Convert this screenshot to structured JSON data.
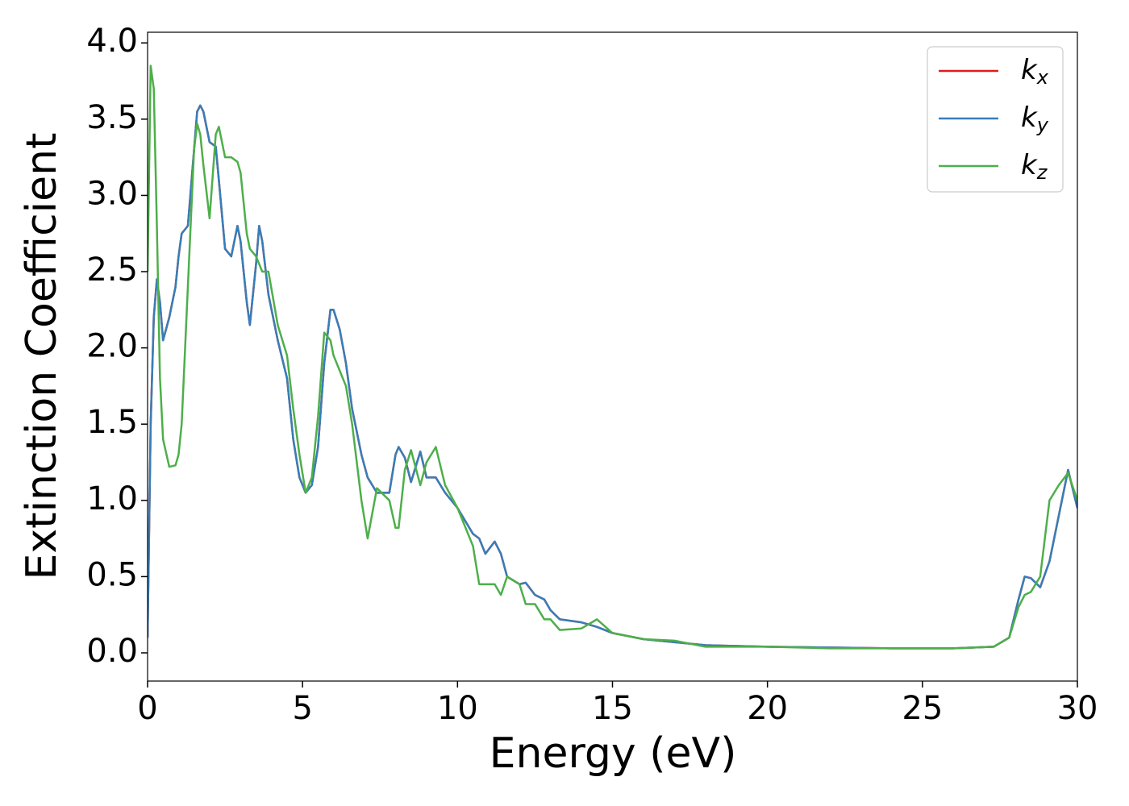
{
  "chart_data": {
    "type": "line",
    "x_label": "Energy (eV)",
    "y_label": "Extinction Coefficient",
    "xlim": [
      0,
      30
    ],
    "ylim": [
      -0.185,
      4.07
    ],
    "xticks": [
      0,
      5,
      10,
      15,
      20,
      25,
      30
    ],
    "yticks": [
      {
        "value": 0,
        "label": "0.0"
      },
      {
        "value": 0.5,
        "label": "0.5"
      },
      {
        "value": 1,
        "label": "1.0"
      },
      {
        "value": 1.5,
        "label": "1.5"
      },
      {
        "value": 2,
        "label": "2.0"
      },
      {
        "value": 2.5,
        "label": "2.5"
      },
      {
        "value": 3,
        "label": "3.0"
      },
      {
        "value": 3.5,
        "label": "3.5"
      },
      {
        "value": 4,
        "label": "4.0"
      }
    ],
    "grid": false,
    "legend": "upper right",
    "x": [
      0,
      0.1,
      0.2,
      0.3,
      0.4,
      0.5,
      0.7,
      0.9,
      1.0,
      1.1,
      1.3,
      1.5,
      1.6,
      1.7,
      1.8,
      2.0,
      2.2,
      2.3,
      2.5,
      2.7,
      2.9,
      3.0,
      3.2,
      3.3,
      3.5,
      3.6,
      3.7,
      3.9,
      4.2,
      4.5,
      4.7,
      4.9,
      5.1,
      5.3,
      5.5,
      5.7,
      5.9,
      6.0,
      6.2,
      6.4,
      6.6,
      6.9,
      7.1,
      7.4,
      7.8,
      8.0,
      8.1,
      8.3,
      8.5,
      8.8,
      9.0,
      9.3,
      9.6,
      10.0,
      10.5,
      10.7,
      10.9,
      11.2,
      11.4,
      11.6,
      12.0,
      12.2,
      12.5,
      12.8,
      13.0,
      13.3,
      14.0,
      14.5,
      15.0,
      16.0,
      17.0,
      18.0,
      20,
      22,
      24,
      26,
      27.3,
      27.8,
      28.1,
      28.3,
      28.5,
      28.8,
      29.1,
      29.4,
      29.7,
      30
    ],
    "series": [
      {
        "name": "kx",
        "color": "#e41a1c",
        "values": [
          0.1,
          1.5,
          2.2,
          2.45,
          2.3,
          2.05,
          2.2,
          2.4,
          2.6,
          2.75,
          2.8,
          3.3,
          3.55,
          3.59,
          3.55,
          3.35,
          3.32,
          3.1,
          2.65,
          2.6,
          2.8,
          2.7,
          2.3,
          2.15,
          2.55,
          2.8,
          2.7,
          2.35,
          2.05,
          1.8,
          1.4,
          1.15,
          1.05,
          1.1,
          1.35,
          1.9,
          2.25,
          2.25,
          2.12,
          1.9,
          1.6,
          1.3,
          1.15,
          1.05,
          1.05,
          1.3,
          1.35,
          1.28,
          1.12,
          1.32,
          1.15,
          1.15,
          1.05,
          0.95,
          0.78,
          0.75,
          0.65,
          0.73,
          0.65,
          0.5,
          0.45,
          0.46,
          0.38,
          0.35,
          0.28,
          0.22,
          0.2,
          0.17,
          0.13,
          0.09,
          0.07,
          0.05,
          0.04,
          0.035,
          0.03,
          0.03,
          0.04,
          0.1,
          0.35,
          0.5,
          0.49,
          0.43,
          0.6,
          0.9,
          1.2,
          0.95
        ]
      },
      {
        "name": "ky",
        "color": "#377eb8",
        "values": [
          0.1,
          1.5,
          2.2,
          2.45,
          2.3,
          2.05,
          2.2,
          2.4,
          2.6,
          2.75,
          2.8,
          3.3,
          3.55,
          3.59,
          3.55,
          3.35,
          3.32,
          3.1,
          2.65,
          2.6,
          2.8,
          2.7,
          2.3,
          2.15,
          2.55,
          2.8,
          2.7,
          2.35,
          2.05,
          1.8,
          1.4,
          1.15,
          1.05,
          1.1,
          1.35,
          1.9,
          2.25,
          2.25,
          2.12,
          1.9,
          1.6,
          1.3,
          1.15,
          1.05,
          1.05,
          1.3,
          1.35,
          1.28,
          1.12,
          1.32,
          1.15,
          1.15,
          1.05,
          0.95,
          0.78,
          0.75,
          0.65,
          0.73,
          0.65,
          0.5,
          0.45,
          0.46,
          0.38,
          0.35,
          0.28,
          0.22,
          0.2,
          0.17,
          0.13,
          0.09,
          0.07,
          0.05,
          0.04,
          0.035,
          0.03,
          0.03,
          0.04,
          0.1,
          0.35,
          0.5,
          0.49,
          0.43,
          0.6,
          0.9,
          1.2,
          0.95
        ]
      },
      {
        "name": "kz",
        "color": "#4daf4a",
        "values": [
          2.5,
          3.85,
          3.7,
          2.8,
          1.8,
          1.4,
          1.22,
          1.23,
          1.3,
          1.5,
          2.4,
          3.3,
          3.47,
          3.4,
          3.2,
          2.85,
          3.4,
          3.45,
          3.25,
          3.25,
          3.22,
          3.15,
          2.75,
          2.65,
          2.6,
          2.55,
          2.5,
          2.5,
          2.15,
          1.95,
          1.6,
          1.3,
          1.05,
          1.15,
          1.55,
          2.1,
          2.05,
          1.95,
          1.85,
          1.75,
          1.5,
          1.0,
          0.75,
          1.08,
          1.0,
          0.82,
          0.82,
          1.2,
          1.33,
          1.1,
          1.25,
          1.35,
          1.1,
          0.95,
          0.7,
          0.45,
          0.45,
          0.45,
          0.38,
          0.5,
          0.45,
          0.32,
          0.32,
          0.22,
          0.22,
          0.15,
          0.16,
          0.22,
          0.13,
          0.09,
          0.08,
          0.04,
          0.04,
          0.03,
          0.03,
          0.03,
          0.04,
          0.1,
          0.3,
          0.38,
          0.4,
          0.5,
          1.0,
          1.1,
          1.18,
          1.0
        ]
      }
    ]
  }
}
